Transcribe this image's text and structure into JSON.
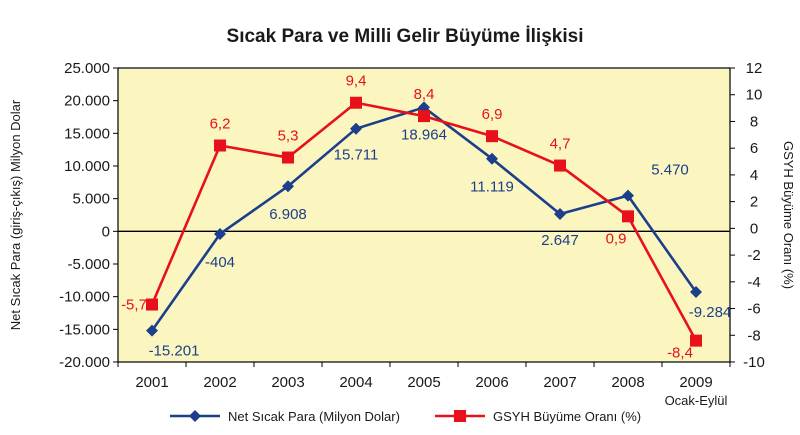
{
  "chart_data": {
    "type": "line",
    "title": "Sıcak Para ve Milli Gelir Büyüme İlişkisi",
    "categories": [
      "2001",
      "2002",
      "2003",
      "2004",
      "2005",
      "2006",
      "2007",
      "2008",
      "2009"
    ],
    "category_sublabels": [
      "",
      "",
      "",
      "",
      "",
      "",
      "",
      "",
      "Ocak-Eylül"
    ],
    "ylabel": "Net Sıcak Para (giriş-çıkış) Milyon Dolar",
    "y2label": "GSYH Büyüme Oranı (%)",
    "ylim": [
      -20000,
      25000
    ],
    "y_ticks": [
      -20000,
      -15000,
      -10000,
      -5000,
      0,
      5000,
      10000,
      15000,
      20000,
      25000
    ],
    "y_tick_labels": [
      "-20.000",
      "-15.000",
      "-10.000",
      "-5.000",
      "0",
      "5.000",
      "10.000",
      "15.000",
      "20.000",
      "25.000"
    ],
    "y2lim": [
      -10,
      12
    ],
    "y2_ticks": [
      -10,
      -8,
      -6,
      -4,
      -2,
      0,
      2,
      4,
      6,
      8,
      10,
      12
    ],
    "y2_tick_labels": [
      "-10",
      "-8",
      "-6",
      "-4",
      "-2",
      "0",
      "2",
      "4",
      "6",
      "8",
      "10",
      "12"
    ],
    "grid": false,
    "legend_position": "bottom",
    "series": [
      {
        "name": "Net Sıcak Para (Milyon Dolar)",
        "axis": "left",
        "marker": "diamond",
        "color": "#1c3f8c",
        "values": [
          -15201,
          -404,
          6908,
          15711,
          18964,
          11119,
          2647,
          5470,
          -9284
        ],
        "labels": [
          "-15.201",
          "-404",
          "6.908",
          "15.711",
          "18.964",
          "11.119",
          "2.647",
          "5.470",
          "-9.284"
        ]
      },
      {
        "name": "GSYH Büyüme Oranı (%)",
        "axis": "right",
        "marker": "square",
        "color": "#e8101a",
        "values": [
          -5.7,
          6.2,
          5.3,
          9.4,
          8.4,
          6.9,
          4.7,
          0.9,
          -8.4
        ],
        "labels": [
          "-5,7",
          "6,2",
          "5,3",
          "9,4",
          "8,4",
          "6,9",
          "4,7",
          "0,9",
          "-8,4"
        ]
      }
    ],
    "colors": {
      "plot_background": "#fbf6c0",
      "zero_line": "#000000"
    }
  }
}
